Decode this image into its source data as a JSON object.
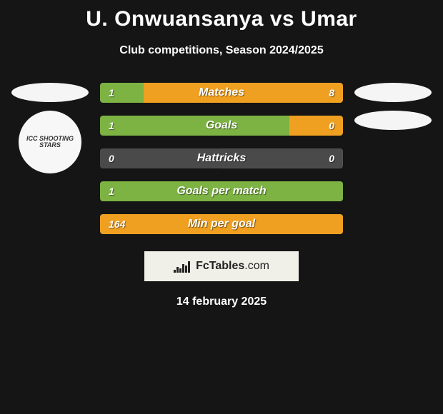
{
  "title": "U. Onwuansanya vs Umar",
  "subtitle": "Club competitions, Season 2024/2025",
  "left_badge_text": "ICC SHOOTING STARS",
  "colors": {
    "player1_fill": "#7cb342",
    "player2_fill": "#f0a020",
    "bar_bg": "#4a4a4a",
    "page_bg": "#151515"
  },
  "stats": [
    {
      "label": "Matches",
      "left_val": "1",
      "right_val": "8",
      "left_pct": 18,
      "right_pct": 82,
      "left_color": "#7cb342",
      "right_color": "#f0a020"
    },
    {
      "label": "Goals",
      "left_val": "1",
      "right_val": "0",
      "left_pct": 78,
      "right_pct": 22,
      "left_color": "#7cb342",
      "right_color": "#f0a020"
    },
    {
      "label": "Hattricks",
      "left_val": "0",
      "right_val": "0",
      "left_pct": 50,
      "right_pct": 0,
      "left_color": "#4a4a4a",
      "right_color": "#4a4a4a"
    },
    {
      "label": "Goals per match",
      "left_val": "1",
      "right_val": "",
      "left_pct": 100,
      "right_pct": 0,
      "left_color": "#7cb342",
      "right_color": "#f0a020"
    },
    {
      "label": "Min per goal",
      "left_val": "164",
      "right_val": "",
      "left_pct": 100,
      "right_pct": 0,
      "left_color": "#f0a020",
      "right_color": "#7cb342"
    }
  ],
  "footer_brand": "FcTables",
  "footer_suffix": ".com",
  "date": "14 february 2025"
}
